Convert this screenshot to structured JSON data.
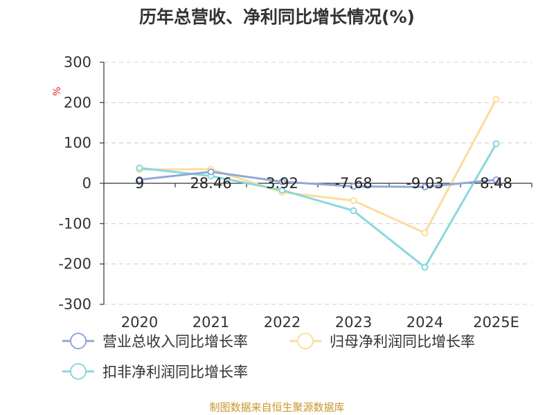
{
  "chart_data": {
    "type": "line",
    "title": "历年总营收、净利同比增长情况(%)",
    "ylabel": "%",
    "xlabel": "",
    "categories": [
      "2020",
      "2021",
      "2022",
      "2023",
      "2024",
      "2025E"
    ],
    "ylim": [
      -300,
      300
    ],
    "yticks": [
      300,
      200,
      100,
      0,
      -100,
      -200,
      -300
    ],
    "grid": true,
    "legend_position": "bottom",
    "series": [
      {
        "name": "营业总收入同比增长率",
        "color": "#8fa8d8",
        "values": [
          9,
          28.46,
          3.92,
          -7.68,
          -9.03,
          8.48
        ],
        "labels": [
          "9",
          "28.46",
          "3.92",
          "-7.68",
          "-9.03",
          "8.48"
        ]
      },
      {
        "name": "归母净利润同比增长率",
        "color": "#fcdc9c",
        "values": [
          34,
          35,
          -22,
          -43,
          -123,
          208
        ]
      },
      {
        "name": "扣非净利润同比增长率",
        "color": "#88d8dc",
        "values": [
          38,
          18,
          -17,
          -68,
          -208,
          98
        ]
      }
    ],
    "source": "制图数据来自恒生聚源数据库"
  }
}
